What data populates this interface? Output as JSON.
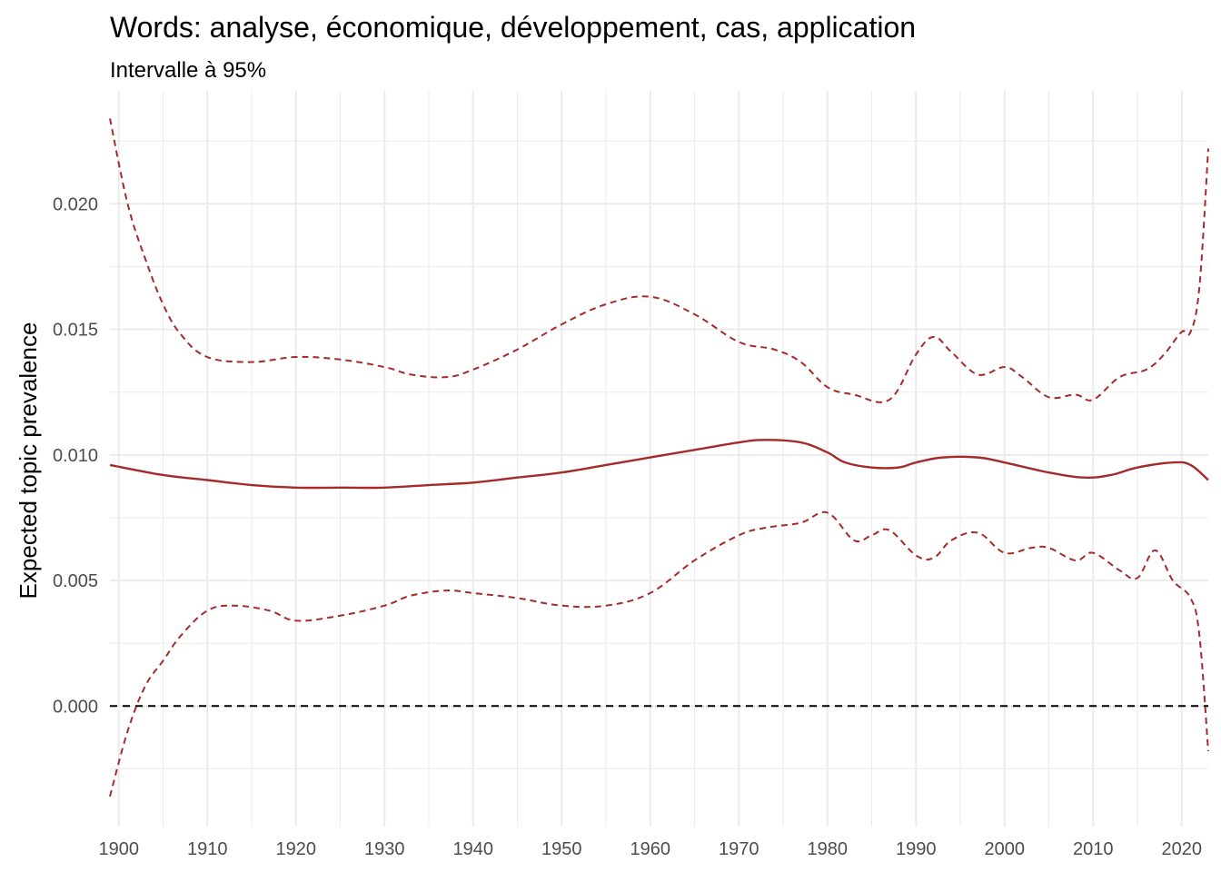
{
  "chart_data": {
    "type": "line",
    "title": "Words: analyse, économique, développement, cas, application",
    "subtitle": "Intervalle à 95%",
    "xlabel": "",
    "ylabel": "Expected topic prevalence",
    "xlim": [
      1899,
      2023
    ],
    "ylim": [
      -0.0048,
      0.0245
    ],
    "x_ticks": [
      1900,
      1910,
      1920,
      1930,
      1940,
      1950,
      1960,
      1970,
      1980,
      1990,
      2000,
      2010,
      2020
    ],
    "x_tick_labels": [
      "1900",
      "1910",
      "1920",
      "1930",
      "1940",
      "1950",
      "1960",
      "1970",
      "1980",
      "1990",
      "2000",
      "2010",
      "2020"
    ],
    "y_ticks": [
      0.0,
      0.005,
      0.01,
      0.015,
      0.02
    ],
    "y_tick_labels": [
      "0.000",
      "0.005",
      "0.010",
      "0.015",
      "0.020"
    ],
    "grid": true,
    "reference_line": {
      "y": 0.0,
      "style": "dashed",
      "color": "#000000"
    },
    "colors": {
      "series": "#a52a2a",
      "grid": "#ebebeb",
      "text": "#4d4d4d"
    },
    "series": [
      {
        "role": "estimate",
        "style": "solid",
        "x": [
          1899,
          1905,
          1910,
          1915,
          1920,
          1925,
          1930,
          1935,
          1940,
          1945,
          1950,
          1955,
          1960,
          1965,
          1970,
          1973,
          1977,
          1980,
          1982,
          1985,
          1988,
          1990,
          1993,
          1997,
          2000,
          2005,
          2009,
          2012,
          2015,
          2019,
          2021,
          2023
        ],
        "y": [
          0.0096,
          0.0092,
          0.009,
          0.0088,
          0.0087,
          0.0087,
          0.0087,
          0.0088,
          0.0089,
          0.0091,
          0.0093,
          0.0096,
          0.0099,
          0.0102,
          0.0105,
          0.0106,
          0.0105,
          0.0101,
          0.0097,
          0.0095,
          0.0095,
          0.0097,
          0.0099,
          0.0099,
          0.0097,
          0.0093,
          0.0091,
          0.0092,
          0.0095,
          0.0097,
          0.0096,
          0.009
        ]
      },
      {
        "role": "upper-95",
        "style": "dashed",
        "x": [
          1899,
          1901,
          1903,
          1905,
          1907,
          1910,
          1915,
          1920,
          1925,
          1930,
          1933,
          1937,
          1940,
          1945,
          1950,
          1955,
          1960,
          1965,
          1970,
          1974,
          1977,
          1980,
          1983,
          1987,
          1990,
          1992,
          1994,
          1997,
          2000,
          2002,
          2005,
          2008,
          2010,
          2013,
          2016,
          2018,
          2020,
          2021,
          2022,
          2023
        ],
        "y": [
          0.0234,
          0.02,
          0.0178,
          0.016,
          0.0148,
          0.0139,
          0.0137,
          0.0139,
          0.0138,
          0.0135,
          0.0132,
          0.0131,
          0.0134,
          0.0142,
          0.0152,
          0.016,
          0.0163,
          0.0156,
          0.0145,
          0.0142,
          0.0137,
          0.0127,
          0.0124,
          0.0122,
          0.014,
          0.0147,
          0.0141,
          0.0132,
          0.0135,
          0.0131,
          0.0123,
          0.0124,
          0.0122,
          0.0131,
          0.0134,
          0.014,
          0.0149,
          0.0149,
          0.0167,
          0.0222
        ]
      },
      {
        "role": "lower-95",
        "style": "dashed",
        "x": [
          1899,
          1901,
          1903,
          1905,
          1907,
          1910,
          1913,
          1917,
          1920,
          1925,
          1930,
          1933,
          1937,
          1940,
          1945,
          1950,
          1955,
          1960,
          1965,
          1970,
          1973,
          1977,
          1980,
          1983,
          1985,
          1987,
          1990,
          1992,
          1994,
          1997,
          2000,
          2003,
          2005,
          2008,
          2010,
          2013,
          2015,
          2017,
          2019,
          2021,
          2022,
          2023
        ],
        "y": [
          -0.0036,
          -0.001,
          0.0008,
          0.0018,
          0.0028,
          0.0038,
          0.004,
          0.0038,
          0.0034,
          0.0036,
          0.004,
          0.0044,
          0.0046,
          0.0045,
          0.0043,
          0.004,
          0.004,
          0.0045,
          0.0058,
          0.0068,
          0.0071,
          0.0073,
          0.0077,
          0.0066,
          0.0068,
          0.007,
          0.006,
          0.0059,
          0.0066,
          0.0069,
          0.0061,
          0.0063,
          0.0063,
          0.0058,
          0.0061,
          0.0054,
          0.0051,
          0.0062,
          0.005,
          0.0043,
          0.0028,
          -0.0018
        ]
      }
    ]
  }
}
